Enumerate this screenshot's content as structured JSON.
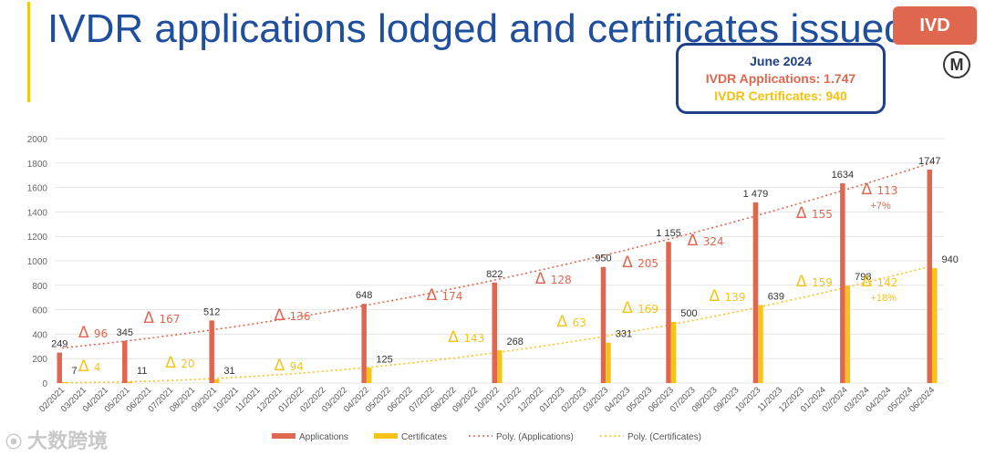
{
  "title": "IVDR applications lodged and certificates issued",
  "badge": "IVD",
  "logo_letter": "M",
  "summary": {
    "date": "June 2024",
    "applications": "IVDR Applications: 1.747",
    "certificates": "IVDR Certificates: 940"
  },
  "watermark": "大数跨境",
  "colors": {
    "applications": "#e0674f",
    "certificates": "#f7c31b",
    "title": "#1f4e9c",
    "box_border": "#1f3f86"
  },
  "chart_data": {
    "type": "bar",
    "categories": [
      "02/2021",
      "03/2021",
      "04/2021",
      "05/2021",
      "06/2021",
      "07/2021",
      "08/2021",
      "09/2021",
      "10/2021",
      "11/2021",
      "12/2021",
      "01/2022",
      "02/2022",
      "03/2022",
      "04/2022",
      "05/2022",
      "06/2022",
      "07/2022",
      "08/2022",
      "09/2022",
      "10/2022",
      "11/2022",
      "12/2022",
      "01/2023",
      "02/2023",
      "03/2023",
      "04/2023",
      "05/2023",
      "06/2023",
      "07/2023",
      "08/2023",
      "09/2023",
      "10/2023",
      "11/2023",
      "12/2023",
      "01/2024",
      "02/2024",
      "03/2024",
      "04/2024",
      "05/2024",
      "06/2024"
    ],
    "ylim": [
      0,
      2000
    ],
    "yticks": [
      "0",
      "200",
      "400",
      "600",
      "800",
      "1000",
      "1200",
      "1400",
      "1600",
      "1800",
      "2000"
    ],
    "grid": true,
    "legend_position": "bottom",
    "series": [
      {
        "name": "Applications",
        "points": [
          {
            "category": "02/2021",
            "value": 249,
            "label": "249"
          },
          {
            "category": "05/2021",
            "value": 345,
            "label": "345"
          },
          {
            "category": "09/2021",
            "value": 512,
            "label": "512"
          },
          {
            "category": "04/2022",
            "value": 648,
            "label": "648"
          },
          {
            "category": "10/2022",
            "value": 822,
            "label": "822"
          },
          {
            "category": "03/2023",
            "value": 950,
            "label": "950"
          },
          {
            "category": "06/2023",
            "value": 1155,
            "label": "1 155"
          },
          {
            "category": "10/2023",
            "value": 1479,
            "label": "1 479"
          },
          {
            "category": "02/2024",
            "value": 1634,
            "label": "1634"
          },
          {
            "category": "06/2024",
            "value": 1747,
            "label": "1747"
          }
        ]
      },
      {
        "name": "Certificates",
        "points": [
          {
            "category": "02/2021",
            "value": 7,
            "label": "7"
          },
          {
            "category": "05/2021",
            "value": 11,
            "label": "11"
          },
          {
            "category": "09/2021",
            "value": 31,
            "label": "31"
          },
          {
            "category": "04/2022",
            "value": 125,
            "label": "125"
          },
          {
            "category": "10/2022",
            "value": 268,
            "label": "268"
          },
          {
            "category": "03/2023",
            "value": 331,
            "label": "331"
          },
          {
            "category": "06/2023",
            "value": 500,
            "label": "500"
          },
          {
            "category": "10/2023",
            "value": 639,
            "label": "639"
          },
          {
            "category": "02/2024",
            "value": 798,
            "label": "798"
          },
          {
            "category": "06/2024",
            "value": 940,
            "label": "940"
          }
        ]
      }
    ],
    "trendlines": [
      {
        "name": "Poly. (Applications)",
        "series": "Applications"
      },
      {
        "name": "Poly. (Certificates)",
        "series": "Certificates"
      }
    ],
    "deltas_applications": [
      {
        "category": "03/2021",
        "value": "96"
      },
      {
        "category": "06/2021",
        "value": "167"
      },
      {
        "category": "12/2021",
        "value": "136"
      },
      {
        "category": "07/2022",
        "value": "174"
      },
      {
        "category": "12/2022",
        "value": "128"
      },
      {
        "category": "04/2023",
        "value": "205"
      },
      {
        "category": "07/2023",
        "value": "324"
      },
      {
        "category": "12/2023",
        "value": "155"
      },
      {
        "category": "03/2024",
        "value": "113",
        "pct": "+7%"
      }
    ],
    "deltas_certificates": [
      {
        "category": "03/2021",
        "value": "4"
      },
      {
        "category": "07/2021",
        "value": "20"
      },
      {
        "category": "12/2021",
        "value": "94"
      },
      {
        "category": "08/2022",
        "value": "143"
      },
      {
        "category": "01/2023",
        "value": "63"
      },
      {
        "category": "04/2023",
        "value": "169"
      },
      {
        "category": "08/2023",
        "value": "139"
      },
      {
        "category": "12/2023",
        "value": "159"
      },
      {
        "category": "03/2024",
        "value": "142",
        "pct": "+18%"
      }
    ],
    "legend": [
      "Applications",
      "Certificates",
      "Poly. (Applications)",
      "Poly. (Certificates)"
    ],
    "delta_symbol": "Δ"
  }
}
